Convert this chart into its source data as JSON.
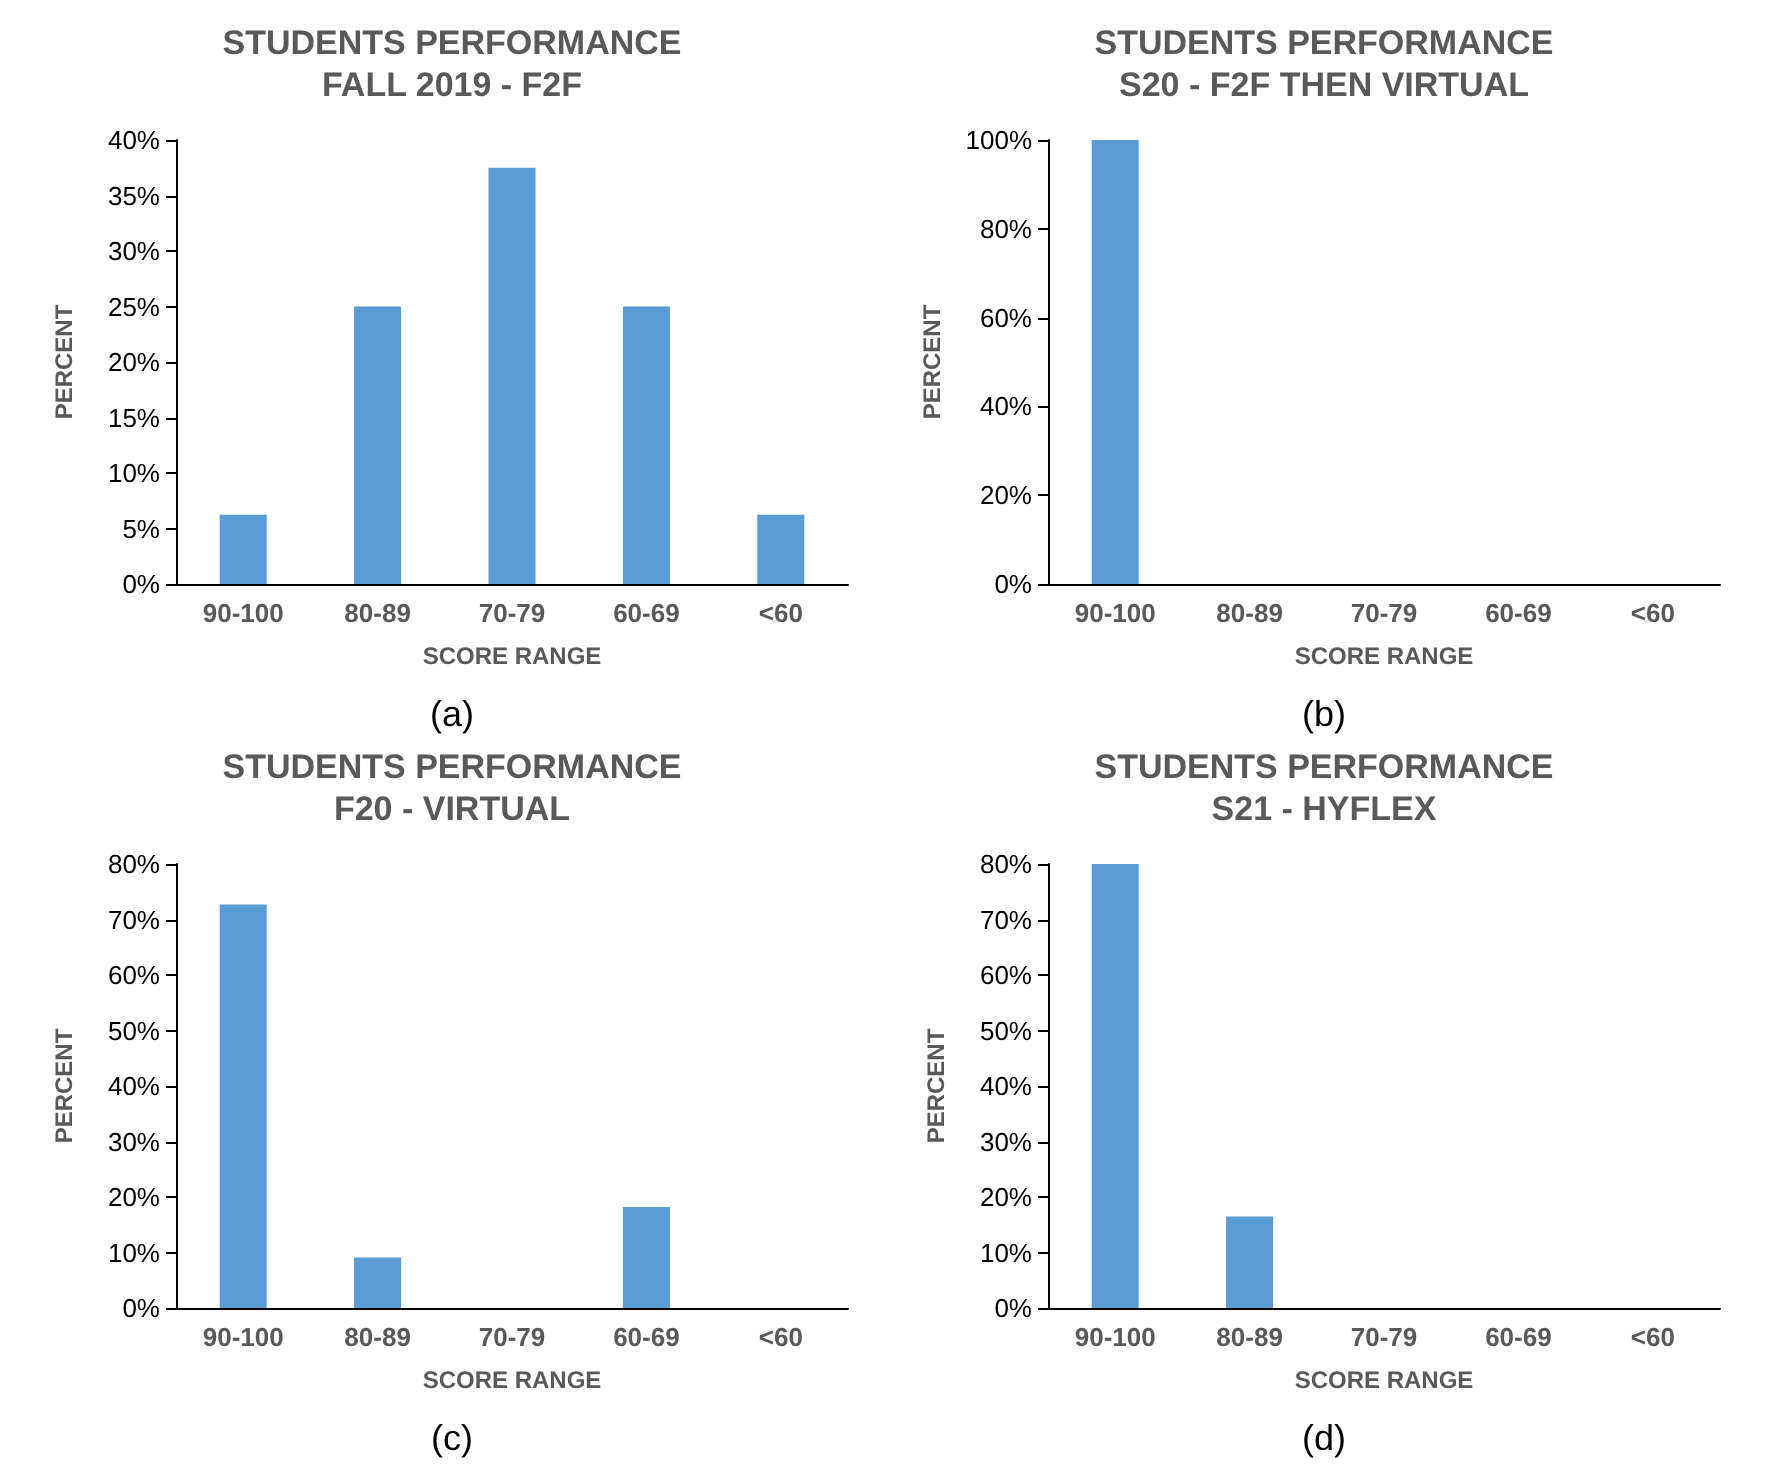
{
  "chart_data": [
    {
      "type": "bar",
      "title": "STUDENTS PERFORMANCE",
      "subtitle": "FALL 2019 - F2F",
      "xlabel": "SCORE RANGE",
      "ylabel": "PERCENT",
      "categories": [
        "90-100",
        "80-89",
        "70-79",
        "60-69",
        "<60"
      ],
      "values": [
        6.25,
        25,
        37.5,
        25,
        6.25
      ],
      "color": "#5b9bd5",
      "ylim": [
        0,
        40
      ],
      "yticks": [
        {
          "value": 0,
          "label": "0%"
        },
        {
          "value": 5,
          "label": "5%"
        },
        {
          "value": 10,
          "label": "10%"
        },
        {
          "value": 15,
          "label": "15%"
        },
        {
          "value": 20,
          "label": "20%"
        },
        {
          "value": 25,
          "label": "25%"
        },
        {
          "value": 30,
          "label": "30%"
        },
        {
          "value": 35,
          "label": "35%"
        },
        {
          "value": 40,
          "label": "40%"
        }
      ],
      "grid": false,
      "annotations": [
        "(a)"
      ]
    },
    {
      "type": "bar",
      "title": "STUDENTS PERFORMANCE",
      "subtitle": "S20 - F2F THEN VIRTUAL",
      "xlabel": "SCORE RANGE",
      "ylabel": "PERCENT",
      "categories": [
        "90-100",
        "80-89",
        "70-79",
        "60-69",
        "<60"
      ],
      "values": [
        100,
        0,
        0,
        0,
        0
      ],
      "color": "#5b9bd5",
      "ylim": [
        0,
        100
      ],
      "yticks": [
        {
          "value": 0,
          "label": "0%"
        },
        {
          "value": 20,
          "label": "20%"
        },
        {
          "value": 40,
          "label": "40%"
        },
        {
          "value": 60,
          "label": "60%"
        },
        {
          "value": 80,
          "label": "80%"
        },
        {
          "value": 100,
          "label": "100%"
        }
      ],
      "grid": false,
      "annotations": [
        "(b)"
      ]
    },
    {
      "type": "bar",
      "title": "STUDENTS PERFORMANCE",
      "subtitle": "F20 - VIRTUAL",
      "xlabel": "SCORE RANGE",
      "ylabel": "PERCENT",
      "categories": [
        "90-100",
        "80-89",
        "70-79",
        "60-69",
        "<60"
      ],
      "values": [
        72.7,
        9.1,
        0,
        18.2,
        0
      ],
      "color": "#5b9bd5",
      "ylim": [
        0,
        80
      ],
      "yticks": [
        {
          "value": 0,
          "label": "0%"
        },
        {
          "value": 10,
          "label": "10%"
        },
        {
          "value": 20,
          "label": "20%"
        },
        {
          "value": 30,
          "label": "30%"
        },
        {
          "value": 40,
          "label": "40%"
        },
        {
          "value": 50,
          "label": "50%"
        },
        {
          "value": 60,
          "label": "60%"
        },
        {
          "value": 70,
          "label": "70%"
        },
        {
          "value": 80,
          "label": "80%"
        }
      ],
      "grid": false,
      "annotations": [
        "(c)"
      ]
    },
    {
      "type": "bar",
      "title": "STUDENTS PERFORMANCE",
      "subtitle": "S21 - HYFLEX",
      "xlabel": "SCORE RANGE",
      "ylabel": "PERCENT",
      "categories": [
        "90-100",
        "80-89",
        "70-79",
        "60-69",
        "<60"
      ],
      "values": [
        80,
        16.5,
        0,
        0,
        0
      ],
      "color": "#5b9bd5",
      "ylim": [
        0,
        80
      ],
      "yticks": [
        {
          "value": 0,
          "label": "0%"
        },
        {
          "value": 10,
          "label": "10%"
        },
        {
          "value": 20,
          "label": "20%"
        },
        {
          "value": 30,
          "label": "30%"
        },
        {
          "value": 40,
          "label": "40%"
        },
        {
          "value": 50,
          "label": "50%"
        },
        {
          "value": 60,
          "label": "60%"
        },
        {
          "value": 70,
          "label": "70%"
        },
        {
          "value": 80,
          "label": "80%"
        }
      ],
      "grid": false,
      "annotations": [
        "(d)"
      ]
    }
  ]
}
